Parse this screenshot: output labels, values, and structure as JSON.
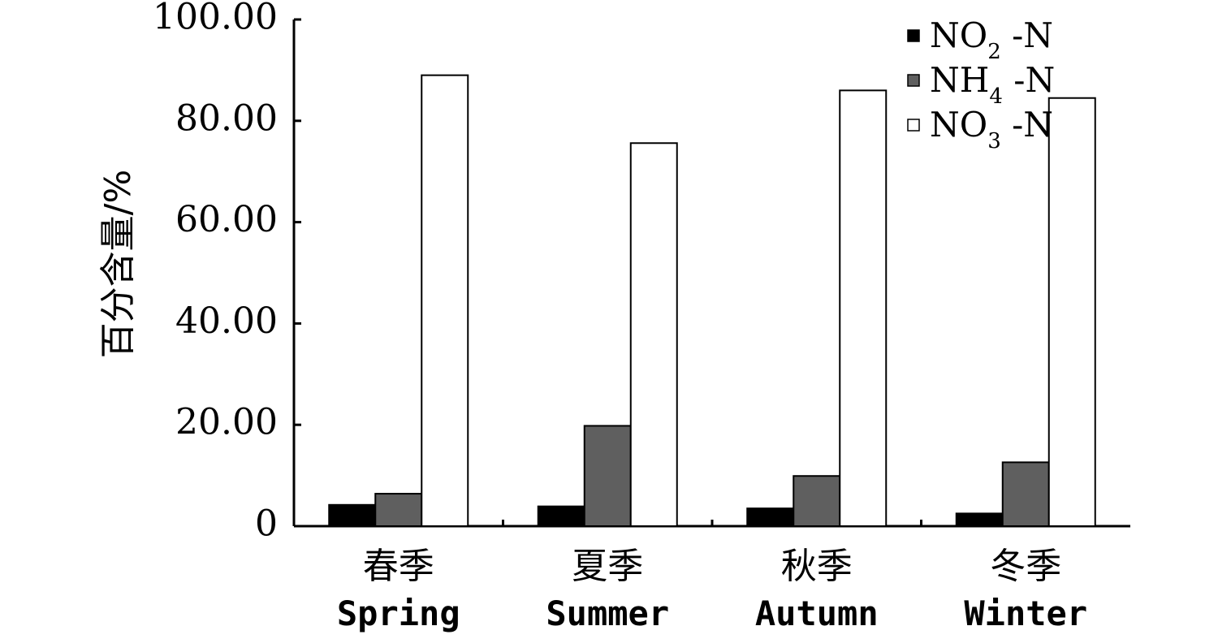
{
  "chart_data": {
    "type": "bar",
    "ylabel": "百分含量/%",
    "xlabel": "",
    "ylim": [
      0,
      100
    ],
    "yticks": [
      "0",
      "20.00",
      "40.00",
      "60.00",
      "80.00",
      "100.00"
    ],
    "ytick_values": [
      0,
      20,
      40,
      60,
      80,
      100
    ],
    "categories": [
      {
        "zh": "春季",
        "en": "Spring"
      },
      {
        "zh": "夏季",
        "en": "Summer"
      },
      {
        "zh": "秋季",
        "en": "Autumn"
      },
      {
        "zh": "冬季",
        "en": "Winter"
      }
    ],
    "series": [
      {
        "name": "NO2 -N",
        "legend_main": "NO",
        "legend_sub": "2",
        "legend_tail": " -N",
        "color": "#000000",
        "values": [
          4.2,
          3.9,
          3.5,
          2.5
        ]
      },
      {
        "name": "NH4 -N",
        "legend_main": "NH",
        "legend_sub": "4",
        "legend_tail": " -N",
        "color": "#5f5f5f",
        "values": [
          6.4,
          19.8,
          9.9,
          12.6
        ]
      },
      {
        "name": "NO3 -N",
        "legend_main": "NO",
        "legend_sub": "3",
        "legend_tail": " -N",
        "color": "#ffffff",
        "values": [
          89.0,
          75.6,
          86.0,
          84.5
        ]
      }
    ],
    "legend_position": "top-right",
    "grid": false
  }
}
